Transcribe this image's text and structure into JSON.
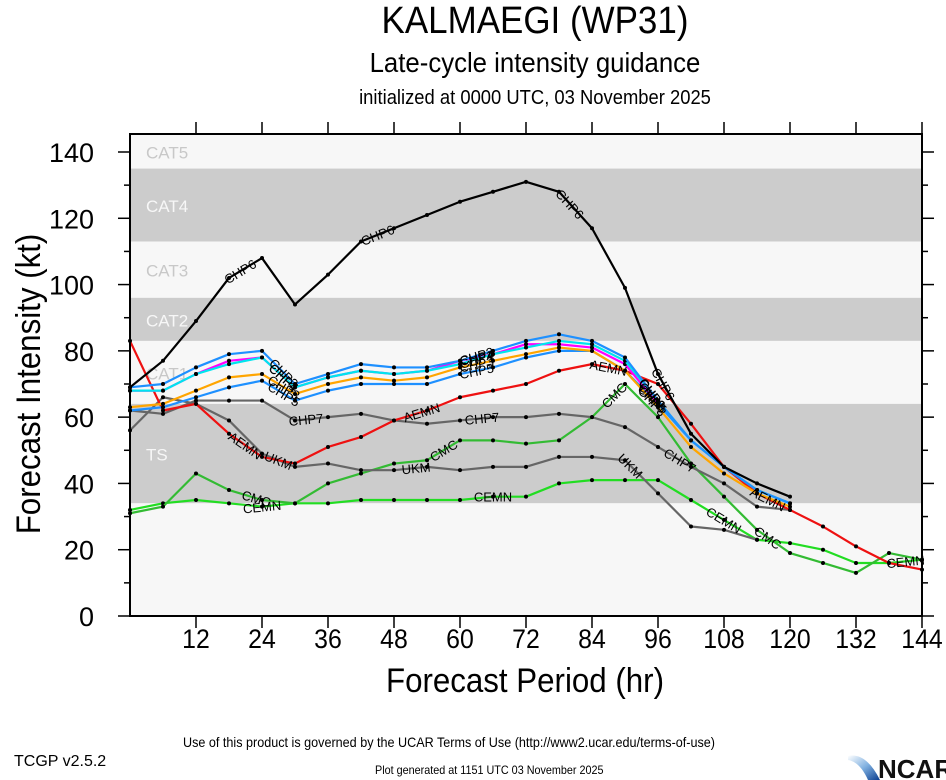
{
  "chart_data": {
    "type": "line",
    "title": "KALMAEGI (WP31)",
    "subtitle": "Late-cycle intensity guidance",
    "subsubtitle": "initialized at 0000 UTC, 03 November 2025",
    "xlabel": "Forecast Period (hr)",
    "ylabel": "Forecast Intensity (kt)",
    "xlim": [
      0,
      144
    ],
    "ylim": [
      0,
      140
    ],
    "x_ticks": [
      12,
      24,
      36,
      48,
      60,
      72,
      84,
      96,
      108,
      120,
      132,
      144
    ],
    "y_ticks": [
      0,
      20,
      40,
      60,
      80,
      100,
      120,
      140
    ],
    "grid": false,
    "bands": [
      {
        "label": "CAT5",
        "from": 135,
        "to": 140,
        "color": "#f7f7f7",
        "label_color": "#c8c8c8"
      },
      {
        "label": "CAT4",
        "from": 113,
        "to": 135,
        "color": "#cccccc",
        "label_color": "#f7f7f7"
      },
      {
        "label": "CAT3",
        "from": 96,
        "to": 113,
        "color": "#f7f7f7",
        "label_color": "#c8c8c8"
      },
      {
        "label": "CAT2",
        "from": 83,
        "to": 96,
        "color": "#cccccc",
        "label_color": "#f7f7f7"
      },
      {
        "label": "CAT1",
        "from": 64,
        "to": 83,
        "color": "#f7f7f7",
        "label_color": "#c8c8c8"
      },
      {
        "label": "TS",
        "from": 34,
        "to": 64,
        "color": "#cccccc",
        "label_color": "#f7f7f7"
      },
      {
        "label": "",
        "from": 0,
        "to": 34,
        "color": "#f7f7f7",
        "label_color": "#c8c8c8"
      }
    ],
    "x": [
      0,
      6,
      12,
      18,
      24,
      30,
      36,
      42,
      48,
      54,
      60,
      66,
      72,
      78,
      84,
      90,
      96,
      102,
      108,
      114,
      120,
      126,
      132,
      138,
      144
    ],
    "series": [
      {
        "name": "CEMN",
        "color": "#22dd22",
        "values": [
          32,
          34,
          35,
          34,
          33,
          34,
          34,
          35,
          35,
          35,
          35,
          36,
          36,
          40,
          41,
          41,
          41,
          35,
          29,
          23,
          22,
          20,
          16,
          16,
          17
        ],
        "label_at": [
          24,
          66,
          108,
          141
        ]
      },
      {
        "name": "CMC",
        "color": "#33bb33",
        "values": [
          31,
          33,
          43,
          38,
          35,
          34,
          40,
          43,
          46,
          47,
          53,
          53,
          52,
          53,
          60,
          70,
          60,
          46,
          36,
          26,
          19,
          16,
          13,
          19,
          17
        ],
        "label_at": [
          23,
          57,
          88,
          116
        ]
      },
      {
        "name": "UKM",
        "color": "#666666",
        "values": [
          56,
          66,
          64,
          59,
          49,
          45,
          46,
          44,
          44,
          45,
          44,
          45,
          45,
          48,
          48,
          47,
          37,
          27,
          26,
          23,
          null,
          null,
          null,
          null,
          null
        ],
        "label_at": [
          27,
          52,
          91
        ]
      },
      {
        "name": "CHP7",
        "color": "#666666",
        "values": [
          62,
          61,
          65,
          65,
          65,
          59,
          60,
          61,
          59,
          58,
          59,
          60,
          60,
          61,
          60,
          57,
          51,
          45,
          40,
          33,
          32,
          null,
          null,
          null,
          null
        ],
        "label_at": [
          32,
          64,
          100
        ]
      },
      {
        "name": "AEMN",
        "color": "#ee1111",
        "values": [
          83,
          62,
          64,
          55,
          48,
          46,
          51,
          54,
          59,
          62,
          66,
          68,
          70,
          74,
          76,
          74,
          70,
          58,
          45,
          37,
          32,
          27,
          21,
          16,
          14
        ],
        "label_at": [
          21,
          53,
          87,
          116
        ]
      },
      {
        "name": "CHP5",
        "color": "#1e90ff",
        "values": [
          62,
          63,
          66,
          69,
          71,
          65,
          68,
          70,
          70,
          70,
          73,
          75,
          78,
          80,
          80,
          74,
          64,
          53,
          45,
          38,
          34,
          null,
          null,
          null,
          null
        ],
        "label_at": [
          28,
          63,
          95
        ]
      },
      {
        "name": "CHP3",
        "color": "#ffa500",
        "values": [
          63,
          64,
          68,
          72,
          73,
          67,
          70,
          72,
          71,
          72,
          75,
          77,
          79,
          81,
          80,
          74,
          63,
          51,
          43,
          37,
          33,
          null,
          null,
          null,
          null
        ],
        "label_at": [
          28,
          63,
          95
        ]
      },
      {
        "name": "CHP4",
        "color": "#ff00ff",
        "values": [
          68,
          68,
          73,
          77,
          78,
          69,
          72,
          74,
          73,
          74,
          77,
          79,
          82,
          82,
          81,
          76,
          64,
          null,
          null,
          null,
          null,
          null,
          null,
          null,
          null
        ],
        "label_at": [
          28,
          63,
          95
        ]
      },
      {
        "name": "CHP1",
        "color": "#00e5ee",
        "values": [
          68,
          68,
          73,
          76,
          78,
          69,
          72,
          74,
          73,
          74,
          76,
          79,
          81,
          83,
          82,
          77,
          65,
          53,
          45,
          38,
          34,
          null,
          null,
          null,
          null
        ],
        "label_at": [
          28,
          63,
          95
        ]
      },
      {
        "name": "CHP2",
        "color": "#1e90ff",
        "values": [
          69,
          70,
          75,
          79,
          80,
          70,
          73,
          76,
          75,
          75,
          77,
          80,
          83,
          85,
          83,
          78,
          65,
          53,
          45,
          38,
          34,
          null,
          null,
          null,
          null
        ],
        "label_at": [
          28,
          63,
          95
        ]
      },
      {
        "name": "CHP6",
        "color": "#000000",
        "values": [
          69,
          77,
          89,
          102,
          108,
          94,
          103,
          113,
          117,
          121,
          125,
          128,
          131,
          128,
          117,
          99,
          73,
          55,
          45,
          40,
          36,
          null,
          null,
          null,
          null
        ],
        "label_at": [
          20,
          45,
          80,
          97
        ]
      }
    ]
  },
  "footer": {
    "terms": "Use of this product is governed by the UCAR Terms of Use (http://www2.ucar.edu/terms-of-use)",
    "version": "TCGP v2.5.2",
    "generated": "Plot generated at 1151 UTC   03 November 2025",
    "logo_text": "NCAR"
  }
}
